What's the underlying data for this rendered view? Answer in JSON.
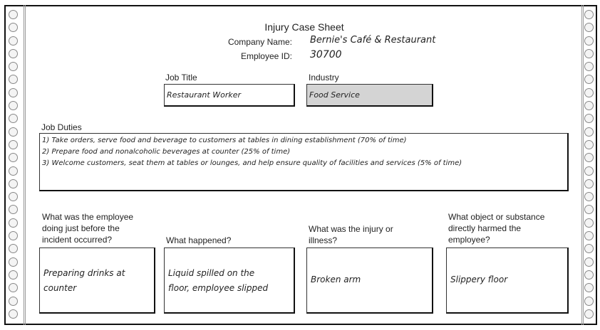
{
  "title": "Injury Case Sheet",
  "company": {
    "label": "Company Name:",
    "value": "Bernie's Café & Restaurant"
  },
  "employee": {
    "label": "Employee ID:",
    "value": "30700"
  },
  "job_title": {
    "label": "Job Title",
    "value": "Restaurant Worker"
  },
  "industry": {
    "label": "Industry",
    "value": "Food Service",
    "fill": "#d4d4d4"
  },
  "job_duties": {
    "label": "Job Duties",
    "lines": [
      "1) Take orders, serve food and beverage to customers at tables in dining establishment (70% of time)",
      "2) Prepare food and nonalcoholic beverages at counter (25% of time)",
      "3) Welcome customers, seat them at tables or lounges, and help ensure quality of facilities and services (5% of time)"
    ]
  },
  "questions": [
    {
      "label": [
        "What was the employee",
        "doing just before the",
        "incident occurred?"
      ],
      "answer": [
        "Preparing drinks at",
        "counter"
      ]
    },
    {
      "label": [
        "What happened?"
      ],
      "answer": [
        "Liquid spilled on the",
        "floor, employee slipped"
      ]
    },
    {
      "label": [
        "What was the injury or",
        "illness?"
      ],
      "answer": [
        "Broken arm"
      ]
    },
    {
      "label": [
        "What object or substance",
        "directly harmed the",
        "employee?"
      ],
      "answer": [
        "Slippery floor"
      ]
    }
  ]
}
